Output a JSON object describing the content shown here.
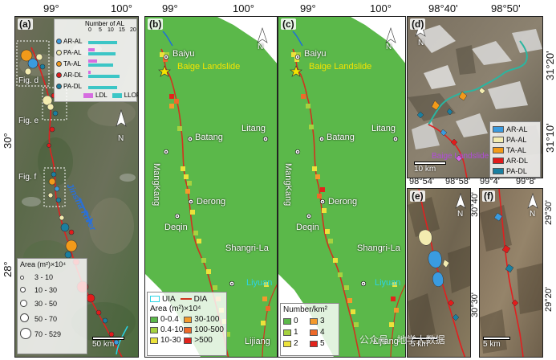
{
  "axes": {
    "top_a": [
      "99°",
      "100°"
    ],
    "left_a": [
      "30°",
      "28°"
    ],
    "top_b": [
      "99°",
      "100°"
    ],
    "top_c": [
      "99°",
      "100°"
    ],
    "top_d": [
      "98°40'",
      "98°50'"
    ],
    "right_d": [
      "31°20'",
      "31°10'"
    ],
    "bottom_e": [
      "98°54'",
      "98°58'"
    ],
    "right_e": [
      "30°40'",
      "30°30'"
    ],
    "bottom_f": [
      "99°4'",
      "99°8'"
    ],
    "right_f": [
      "29°30'",
      "29°20'"
    ]
  },
  "panel_a": {
    "tag": "(a)",
    "chart_title": "Number of AL",
    "chart_ticks": [
      "0",
      "5",
      "10",
      "15",
      "20"
    ],
    "chart_rows": [
      {
        "label": "AR-AL",
        "color": "#3a9be0",
        "ldl": 0,
        "llof": 13
      },
      {
        "label": "PA-AL",
        "color": "#f3ecb0",
        "ldl": 3,
        "llof": 12
      },
      {
        "label": "TA-AL",
        "color": "#f29a1a",
        "ldl": 4,
        "llof": 11
      },
      {
        "label": "AR-DL",
        "color": "#e21b1b",
        "ldl": 1,
        "llof": 14
      },
      {
        "label": "PA-DL",
        "color": "#1a7fa0",
        "ldl": 0,
        "llof": 13
      }
    ],
    "chart_legend": [
      "LDL",
      "LLOF"
    ],
    "chart_colors": {
      "ldl": "#d66de0",
      "llof": "#3cc6c6"
    },
    "fig_labels": [
      "Fig. d",
      "Fig. e",
      "Fig. f"
    ],
    "river_label": "Jinsha River",
    "area_title": "Area (m²)×10⁴",
    "area_classes": [
      "3 - 10",
      "10 - 30",
      "30 - 50",
      "50 - 70",
      "70 - 529"
    ],
    "scale": "50 km",
    "north": "N"
  },
  "panel_b": {
    "tag": "(b)",
    "north": "N",
    "places": [
      "Baiyu",
      "Batang",
      "Litang",
      "MangKang",
      "Derong",
      "Deqin",
      "Shangri-La",
      "Lijiang"
    ],
    "highlight": "Baige Landslide",
    "cyan_place": "Liyuan",
    "legend_line1": [
      "UIA",
      "DIA"
    ],
    "legend_title": "Area (m²)×10⁴",
    "legend_classes": [
      "0-0.4",
      "30-100",
      "0.4-10",
      "100-500",
      "10-30",
      ">500"
    ],
    "legend_colors": [
      "#5bb84a",
      "#f39a2c",
      "#a6d23f",
      "#ee6a2a",
      "#ece23b",
      "#e3231c"
    ]
  },
  "panel_c": {
    "tag": "(c)",
    "north": "N",
    "places": [
      "Baiyu",
      "Batang",
      "Litang",
      "MangKang",
      "Derong",
      "Deqin",
      "Shangri-La",
      "Lijiang"
    ],
    "highlight": "Baige Landslide",
    "cyan_place": "Liyuan",
    "legend_title": "Number/km²",
    "legend_classes": [
      "0",
      "3",
      "1",
      "4",
      "2",
      "5"
    ],
    "legend_colors": [
      "#5bb84a",
      "#f39a2c",
      "#a6d23f",
      "#ee6a2a",
      "#ece23b",
      "#e3231c"
    ]
  },
  "panel_d": {
    "tag": "(d)",
    "north": "N",
    "legend": [
      "AR-AL",
      "PA-AL",
      "TA-AL",
      "AR-DL",
      "PA-DL"
    ],
    "legend_colors": [
      "#3a9be0",
      "#f3ecb0",
      "#f29a1a",
      "#e21b1b",
      "#1a7fa0"
    ],
    "landslide": "Baige Landslide",
    "scale": "10 km"
  },
  "panel_e": {
    "tag": "(e)",
    "north": "N",
    "scale": "5 km"
  },
  "panel_f": {
    "tag": "(f)",
    "north": "N",
    "scale": "5 km"
  },
  "watermark": "公众号 · 地学大数据"
}
